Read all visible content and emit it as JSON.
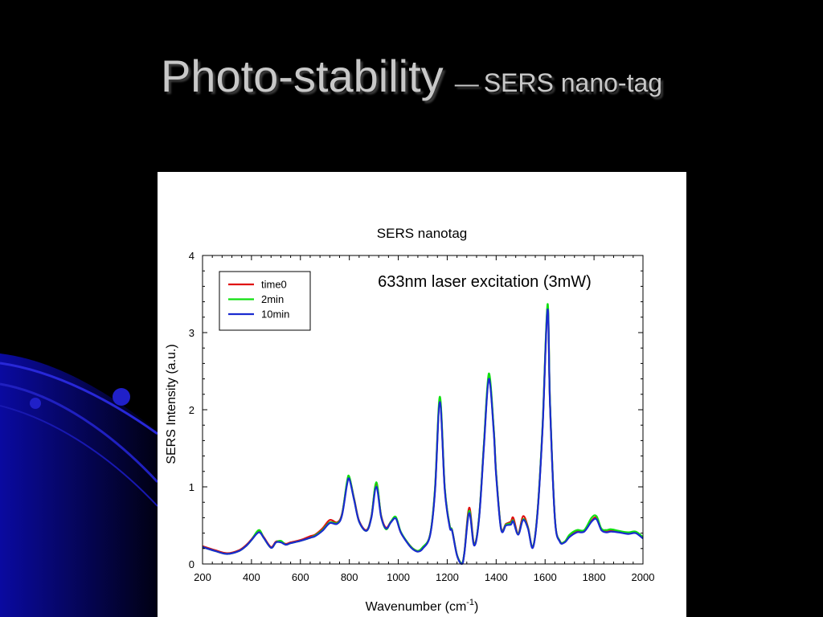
{
  "slide": {
    "title_main": "Photo-stability",
    "title_dash": "—",
    "title_sub": "SERS nano-tag"
  },
  "colors": {
    "background": "#000000",
    "swirl": "#1414c8",
    "title": "#c8c8c8"
  },
  "chart_data": {
    "type": "line",
    "title": "SERS nanotag",
    "annotation": "633nm laser excitation (3mW)",
    "xlabel_base": "Wavenumber (cm",
    "xlabel_sup": "-1",
    "xlabel_end": ")",
    "ylabel": "SERS Intensity (a.u.)",
    "xlim": [
      200,
      2000
    ],
    "ylim": [
      0,
      4
    ],
    "x_ticks": [
      "200",
      "400",
      "600",
      "800",
      "1000",
      "1200",
      "1400",
      "1600",
      "1800",
      "2000"
    ],
    "y_ticks": [
      "0",
      "1",
      "2",
      "3",
      "4"
    ],
    "grid": false,
    "legend_position": "top-left",
    "series": [
      {
        "name": "time0",
        "color": "#e01010",
        "x": [
          200,
          250,
          300,
          350,
          380,
          400,
          430,
          450,
          480,
          500,
          520,
          540,
          560,
          600,
          640,
          660,
          690,
          720,
          750,
          770,
          790,
          800,
          820,
          840,
          870,
          890,
          910,
          930,
          950,
          970,
          990,
          1010,
          1040,
          1060,
          1080,
          1100,
          1130,
          1150,
          1170,
          1190,
          1210,
          1220,
          1240,
          1260,
          1270,
          1290,
          1310,
          1330,
          1350,
          1370,
          1390,
          1400,
          1420,
          1440,
          1460,
          1470,
          1490,
          1510,
          1530,
          1550,
          1570,
          1590,
          1610,
          1620,
          1640,
          1660,
          1680,
          1700,
          1730,
          1760,
          1790,
          1810,
          1830,
          1850,
          1870,
          1900,
          1940,
          1970,
          2000
        ],
        "y": [
          0.23,
          0.18,
          0.14,
          0.18,
          0.25,
          0.32,
          0.43,
          0.35,
          0.22,
          0.29,
          0.29,
          0.26,
          0.28,
          0.31,
          0.36,
          0.38,
          0.46,
          0.57,
          0.54,
          0.65,
          1.04,
          1.12,
          0.84,
          0.56,
          0.44,
          0.62,
          1.04,
          0.63,
          0.47,
          0.55,
          0.6,
          0.41,
          0.27,
          0.2,
          0.17,
          0.21,
          0.38,
          0.96,
          2.13,
          0.98,
          0.5,
          0.44,
          0.12,
          0.01,
          0.15,
          0.73,
          0.26,
          0.6,
          1.55,
          2.42,
          1.75,
          1.18,
          0.47,
          0.52,
          0.55,
          0.6,
          0.4,
          0.62,
          0.48,
          0.22,
          0.72,
          1.8,
          3.33,
          2.1,
          0.6,
          0.3,
          0.29,
          0.36,
          0.42,
          0.43,
          0.56,
          0.6,
          0.45,
          0.42,
          0.43,
          0.42,
          0.4,
          0.41,
          0.34
        ]
      },
      {
        "name": "2min",
        "color": "#10e010",
        "x": [
          200,
          250,
          300,
          350,
          380,
          400,
          430,
          450,
          480,
          500,
          520,
          540,
          560,
          600,
          640,
          660,
          690,
          720,
          750,
          770,
          790,
          800,
          820,
          840,
          870,
          890,
          910,
          930,
          950,
          970,
          990,
          1010,
          1040,
          1060,
          1080,
          1100,
          1130,
          1150,
          1170,
          1190,
          1210,
          1220,
          1240,
          1260,
          1270,
          1290,
          1310,
          1330,
          1350,
          1370,
          1390,
          1400,
          1420,
          1440,
          1460,
          1470,
          1490,
          1510,
          1530,
          1550,
          1570,
          1590,
          1610,
          1620,
          1640,
          1660,
          1680,
          1700,
          1730,
          1760,
          1790,
          1810,
          1830,
          1850,
          1870,
          1900,
          1940,
          1970,
          2000
        ],
        "y": [
          0.22,
          0.17,
          0.13,
          0.17,
          0.24,
          0.31,
          0.44,
          0.34,
          0.21,
          0.28,
          0.3,
          0.25,
          0.27,
          0.3,
          0.34,
          0.37,
          0.44,
          0.54,
          0.53,
          0.64,
          1.06,
          1.13,
          0.83,
          0.55,
          0.43,
          0.61,
          1.06,
          0.62,
          0.45,
          0.55,
          0.61,
          0.42,
          0.27,
          0.2,
          0.17,
          0.22,
          0.38,
          0.98,
          2.17,
          0.99,
          0.5,
          0.44,
          0.12,
          0.01,
          0.15,
          0.69,
          0.25,
          0.6,
          1.56,
          2.47,
          1.76,
          1.18,
          0.46,
          0.51,
          0.53,
          0.56,
          0.39,
          0.58,
          0.47,
          0.22,
          0.72,
          1.82,
          3.37,
          2.12,
          0.6,
          0.3,
          0.29,
          0.38,
          0.44,
          0.44,
          0.6,
          0.62,
          0.46,
          0.44,
          0.45,
          0.43,
          0.41,
          0.42,
          0.35
        ]
      },
      {
        "name": "10min",
        "color": "#1a2ad0",
        "x": [
          200,
          250,
          300,
          350,
          380,
          400,
          430,
          450,
          480,
          500,
          520,
          540,
          560,
          600,
          640,
          660,
          690,
          720,
          750,
          770,
          790,
          800,
          820,
          840,
          870,
          890,
          910,
          930,
          950,
          970,
          990,
          1010,
          1040,
          1060,
          1080,
          1100,
          1130,
          1150,
          1170,
          1190,
          1210,
          1220,
          1240,
          1260,
          1270,
          1290,
          1310,
          1330,
          1350,
          1370,
          1390,
          1400,
          1420,
          1440,
          1460,
          1470,
          1490,
          1510,
          1530,
          1550,
          1570,
          1590,
          1610,
          1620,
          1640,
          1660,
          1680,
          1700,
          1730,
          1760,
          1790,
          1810,
          1830,
          1850,
          1870,
          1900,
          1940,
          1970,
          2000
        ],
        "y": [
          0.22,
          0.17,
          0.13,
          0.17,
          0.24,
          0.31,
          0.41,
          0.34,
          0.21,
          0.28,
          0.28,
          0.25,
          0.27,
          0.3,
          0.34,
          0.36,
          0.43,
          0.53,
          0.52,
          0.63,
          1.02,
          1.1,
          0.82,
          0.55,
          0.43,
          0.6,
          1.0,
          0.61,
          0.46,
          0.54,
          0.59,
          0.41,
          0.26,
          0.19,
          0.16,
          0.2,
          0.37,
          0.94,
          2.1,
          0.96,
          0.48,
          0.43,
          0.11,
          0.0,
          0.14,
          0.66,
          0.24,
          0.58,
          1.52,
          2.4,
          1.72,
          1.15,
          0.45,
          0.5,
          0.51,
          0.55,
          0.38,
          0.57,
          0.46,
          0.21,
          0.7,
          1.78,
          3.3,
          2.08,
          0.59,
          0.29,
          0.28,
          0.35,
          0.41,
          0.42,
          0.55,
          0.58,
          0.44,
          0.41,
          0.42,
          0.41,
          0.39,
          0.4,
          0.33
        ]
      }
    ]
  }
}
